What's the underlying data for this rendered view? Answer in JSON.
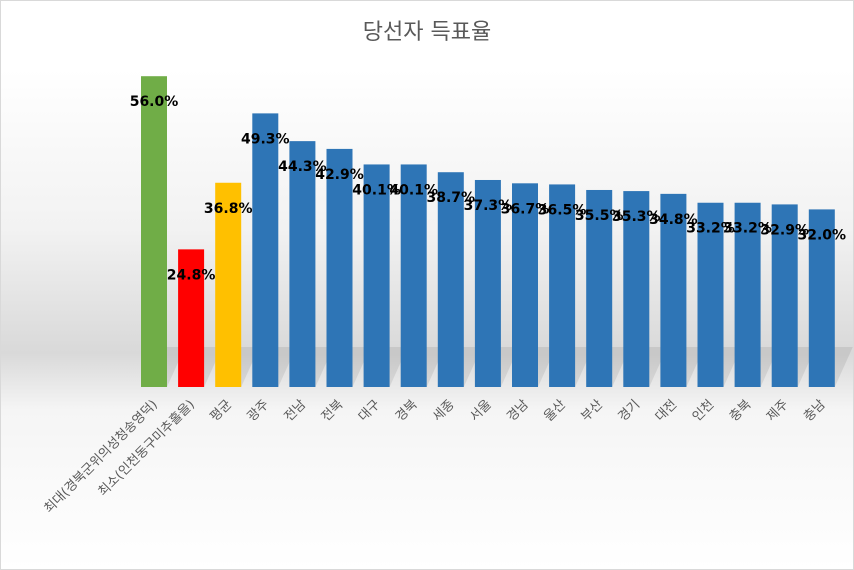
{
  "chart_data": {
    "type": "bar",
    "title": "당선자 득표율",
    "xlabel": "",
    "ylabel": "",
    "ylim": [
      0,
      60
    ],
    "grid": false,
    "legend": "none",
    "categories": [
      "최대(경북군위의성청송영덕)",
      "최소(인천동구미추홀을)",
      "평균",
      "광주",
      "전남",
      "전북",
      "대구",
      "경북",
      "세종",
      "서울",
      "경남",
      "울산",
      "부산",
      "경기",
      "대전",
      "인천",
      "충북",
      "제주",
      "충남"
    ],
    "values": [
      56.0,
      24.8,
      36.8,
      49.3,
      44.3,
      42.9,
      40.1,
      40.1,
      38.7,
      37.3,
      36.7,
      36.5,
      35.5,
      35.3,
      34.8,
      33.2,
      33.2,
      32.9,
      32.0
    ],
    "data_labels": [
      "56.0%",
      "24.8%",
      "36.8%",
      "49.3%",
      "44.3%",
      "42.9%",
      "40.1%",
      "40.1%",
      "38.7%",
      "37.3%",
      "36.7%",
      "36.5%",
      "35.5%",
      "35.3%",
      "34.8%",
      "33.2%",
      "33.2%",
      "32.9%",
      "32.0%"
    ],
    "bar_colors": [
      "#70ad47",
      "#ff0000",
      "#ffc000",
      "#2e75b6",
      "#2e75b6",
      "#2e75b6",
      "#2e75b6",
      "#2e75b6",
      "#2e75b6",
      "#2e75b6",
      "#2e75b6",
      "#2e75b6",
      "#2e75b6",
      "#2e75b6",
      "#2e75b6",
      "#2e75b6",
      "#2e75b6",
      "#2e75b6",
      "#2e75b6"
    ]
  }
}
